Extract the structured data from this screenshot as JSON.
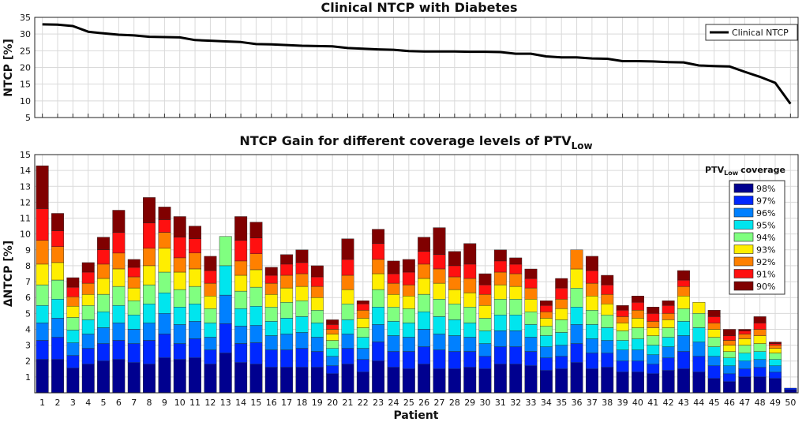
{
  "chart_data": [
    {
      "type": "line",
      "title": "Clinical NTCP with Diabetes",
      "xlabel": "",
      "ylabel": "NTCP [%]",
      "ylim": [
        5,
        35
      ],
      "yticks": [
        5,
        10,
        15,
        20,
        25,
        30,
        35
      ],
      "grid": true,
      "legend": [
        "Clinical NTCP"
      ],
      "legend_position": "top-right",
      "x": [
        1,
        2,
        3,
        4,
        5,
        6,
        7,
        8,
        9,
        10,
        11,
        12,
        13,
        14,
        15,
        16,
        17,
        18,
        19,
        20,
        21,
        22,
        23,
        24,
        25,
        26,
        27,
        28,
        29,
        30,
        31,
        32,
        33,
        34,
        35,
        36,
        37,
        38,
        39,
        40,
        41,
        42,
        43,
        44,
        45,
        46,
        47,
        48,
        49,
        50
      ],
      "series": [
        {
          "name": "Clinical NTCP",
          "values": [
            32.9,
            32.8,
            32.4,
            30.7,
            30.2,
            29.8,
            29.6,
            29.2,
            29.1,
            29.0,
            28.2,
            28.0,
            27.8,
            27.6,
            27.0,
            26.9,
            26.7,
            26.5,
            26.4,
            26.3,
            25.8,
            25.6,
            25.4,
            25.3,
            24.9,
            24.8,
            24.8,
            24.8,
            24.7,
            24.7,
            24.6,
            24.1,
            24.1,
            23.3,
            23.0,
            23.0,
            22.7,
            22.6,
            21.9,
            21.9,
            21.8,
            21.6,
            21.5,
            20.6,
            20.4,
            20.3,
            18.7,
            17.2,
            15.4,
            9.1
          ]
        }
      ]
    },
    {
      "type": "bar",
      "stacked": true,
      "title": "NTCP Gain for different coverage levels of PTV",
      "title_sub": "Low",
      "xlabel": "Patient",
      "ylabel": "ΔNTCP [%]",
      "ylim": [
        0,
        15
      ],
      "yticks": [
        1,
        2,
        3,
        4,
        5,
        6,
        7,
        8,
        9,
        10,
        11,
        12,
        13,
        14,
        15
      ],
      "grid": true,
      "legend_title": "PTV",
      "legend_title_sub": "Low",
      "legend_title_suffix": "coverage",
      "legend_position": "top-right",
      "categories": [
        "1",
        "2",
        "3",
        "4",
        "5",
        "6",
        "7",
        "8",
        "9",
        "10",
        "11",
        "12",
        "13",
        "14",
        "15",
        "16",
        "17",
        "18",
        "19",
        "20",
        "21",
        "22",
        "23",
        "24",
        "25",
        "26",
        "27",
        "28",
        "29",
        "30",
        "31",
        "32",
        "33",
        "34",
        "35",
        "36",
        "37",
        "38",
        "39",
        "40",
        "41",
        "42",
        "43",
        "44",
        "45",
        "46",
        "47",
        "48",
        "49",
        "50"
      ],
      "series": [
        {
          "name": "98%",
          "color": "#00008f",
          "values": [
            2.1,
            2.1,
            1.55,
            1.8,
            2.0,
            2.1,
            1.9,
            1.8,
            2.2,
            2.1,
            2.2,
            1.8,
            2.5,
            1.9,
            1.8,
            1.6,
            1.6,
            1.6,
            1.6,
            1.2,
            1.8,
            1.3,
            2.0,
            1.6,
            1.5,
            1.8,
            1.5,
            1.5,
            1.6,
            1.5,
            1.8,
            1.8,
            1.7,
            1.4,
            1.5,
            1.9,
            1.5,
            1.6,
            1.3,
            1.3,
            1.2,
            1.4,
            1.5,
            1.3,
            0.9,
            0.7,
            1.0,
            1.0,
            0.9,
            0.2
          ]
        },
        {
          "name": "97%",
          "color": "#0028ff",
          "values": [
            1.2,
            1.4,
            0.8,
            1.0,
            1.1,
            1.2,
            1.2,
            1.5,
            1.5,
            1.0,
            1.2,
            0.9,
            1.85,
            1.2,
            1.35,
            1.1,
            1.1,
            1.2,
            1.0,
            0.5,
            1.0,
            0.8,
            1.2,
            1.0,
            1.1,
            1.1,
            1.2,
            1.1,
            1.0,
            0.8,
            1.1,
            1.1,
            0.9,
            0.8,
            0.8,
            1.2,
            1.0,
            0.9,
            0.7,
            0.7,
            0.6,
            0.8,
            1.1,
            1.0,
            0.8,
            0.5,
            0.5,
            0.6,
            0.4,
            0.1
          ]
        },
        {
          "name": "96%",
          "color": "#0080ff",
          "values": [
            1.1,
            1.2,
            0.8,
            0.9,
            1.0,
            1.1,
            0.9,
            1.1,
            1.3,
            1.2,
            1.1,
            0.8,
            1.8,
            1.1,
            1.1,
            0.9,
            1.0,
            1.0,
            0.9,
            0.6,
            0.9,
            0.7,
            1.1,
            1.0,
            0.9,
            1.1,
            1.0,
            1.0,
            0.9,
            0.8,
            1.0,
            1.0,
            0.9,
            0.7,
            0.7,
            1.2,
            0.9,
            0.8,
            0.7,
            0.7,
            0.6,
            0.7,
            1.0,
            0.9,
            0.6,
            0.5,
            0.5,
            0.5,
            0.4,
            0
          ]
        },
        {
          "name": "95%",
          "color": "#00e5ee",
          "values": [
            1.1,
            1.2,
            0.8,
            0.9,
            1.0,
            1.1,
            0.9,
            1.2,
            1.3,
            1.1,
            1.1,
            0.9,
            1.85,
            1.1,
            1.2,
            0.9,
            1.0,
            1.0,
            0.9,
            0.5,
            0.9,
            0.7,
            1.1,
            0.9,
            0.9,
            1.1,
            1.1,
            1.0,
            0.9,
            0.8,
            1.0,
            1.0,
            0.8,
            0.7,
            0.8,
            1.1,
            0.9,
            0.8,
            0.6,
            0.7,
            0.6,
            0.6,
            0.9,
            0.9,
            0.6,
            0.5,
            0.5,
            0.5,
            0.4,
            0
          ]
        },
        {
          "name": "94%",
          "color": "#80ff80",
          "values": [
            1.3,
            1.2,
            0.8,
            0.9,
            1.1,
            1.2,
            0.9,
            1.2,
            1.3,
            1.1,
            1.1,
            0.9,
            1.85,
            1.1,
            1.2,
            0.9,
            1.0,
            1.0,
            0.8,
            0.5,
            1.0,
            0.6,
            1.1,
            0.9,
            0.9,
            1.1,
            1.1,
            1.0,
            1.0,
            0.8,
            1.0,
            1.0,
            0.8,
            0.6,
            0.8,
            1.2,
            0.9,
            0.8,
            0.6,
            0.7,
            0.6,
            0.6,
            0.8,
            0.9,
            0.6,
            0.4,
            0.5,
            0.5,
            0.4,
            0
          ]
        },
        {
          "name": "93%",
          "color": "#ffee00",
          "values": [
            1.3,
            1.1,
            0.7,
            0.7,
            1.0,
            1.1,
            0.8,
            1.2,
            1.5,
            1.1,
            1.1,
            0.8,
            0,
            1.0,
            1.1,
            0.8,
            0.9,
            0.9,
            0.8,
            0.4,
            0.9,
            0.6,
            1.0,
            0.8,
            0.8,
            1.0,
            1.0,
            0.9,
            0.9,
            0.8,
            0.9,
            0.8,
            0.8,
            0.5,
            0.7,
            1.2,
            0.9,
            0.7,
            0.5,
            0.6,
            0.5,
            0.5,
            0.8,
            0.7,
            0.5,
            0.4,
            0.4,
            0.5,
            0.3,
            0
          ]
        },
        {
          "name": "92%",
          "color": "#ff8000",
          "values": [
            1.5,
            1.0,
            0.6,
            0.7,
            0.9,
            1.0,
            0.7,
            1.1,
            1.0,
            0.9,
            1.0,
            0.8,
            0,
            0.9,
            1.0,
            0.7,
            0.8,
            0.8,
            0.7,
            0.3,
            0.9,
            0.5,
            0.9,
            0.7,
            0.7,
            0.9,
            0.9,
            0.8,
            0.9,
            0.7,
            0.8,
            0.8,
            0.7,
            0.4,
            0.6,
            1.2,
            0.8,
            0.6,
            0.4,
            0.5,
            0.4,
            0.4,
            0.6,
            0,
            0.4,
            0.3,
            0.3,
            0.4,
            0.2,
            0
          ]
        },
        {
          "name": "91%",
          "color": "#ff1010",
          "values": [
            2.0,
            1.0,
            0.6,
            0.7,
            0.9,
            1.3,
            0.6,
            1.6,
            0.8,
            1.3,
            0.9,
            0.8,
            0,
            1.3,
            1.0,
            0.5,
            0.7,
            0.7,
            0.6,
            0.3,
            1.0,
            0.4,
            1.0,
            0.6,
            0.8,
            0.8,
            0.9,
            0.7,
            0.9,
            0.6,
            0.7,
            0.6,
            0.6,
            0.4,
            0.7,
            0,
            0.8,
            0.6,
            0.4,
            0.5,
            0.5,
            0.5,
            0.4,
            0,
            0.4,
            0.3,
            0.2,
            0.4,
            0.1,
            0
          ]
        },
        {
          "name": "90%",
          "color": "#800000",
          "values": [
            2.7,
            1.1,
            0.6,
            0.6,
            0.8,
            1.4,
            0.5,
            1.6,
            0.8,
            1.3,
            0.8,
            0.9,
            0,
            1.5,
            1.0,
            0.5,
            0.6,
            0.8,
            0.7,
            0.3,
            1.3,
            0.2,
            0.9,
            0.8,
            0.8,
            0.9,
            1.7,
            0.9,
            1.3,
            0.7,
            0.7,
            0.4,
            0.6,
            0.3,
            0.6,
            0,
            0.9,
            0.6,
            0.3,
            0.4,
            0.4,
            0.3,
            0.6,
            0,
            0.4,
            0.4,
            0.1,
            0.4,
            0.1,
            0
          ]
        }
      ]
    }
  ]
}
